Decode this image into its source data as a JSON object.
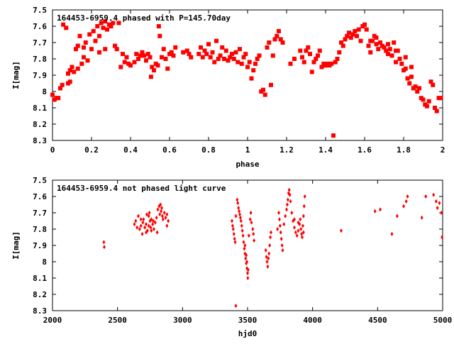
{
  "colors": {
    "points": "#ff0000",
    "axes": "#000000",
    "background": "#ffffff"
  },
  "chart_data": [
    {
      "type": "scatter",
      "title": "164453-6959.4 phased with P=145.70day",
      "xlabel": "phase",
      "ylabel": "I[mag]",
      "xlim": [
        0,
        2
      ],
      "ylim": [
        8.3,
        7.5
      ],
      "y_inverted": true,
      "grid": false,
      "x_ticks": [
        "0",
        "0.2",
        "0.4",
        "0.6",
        "0.8",
        "1",
        "1.2",
        "1.4",
        "1.6",
        "1.8",
        "2"
      ],
      "y_ticks": [
        "7.5",
        "7.6",
        "7.7",
        "7.8",
        "7.9",
        "8",
        "8.1",
        "8.2",
        "8.3"
      ],
      "marker": "square",
      "points": [
        [
          0.0,
          8.02
        ],
        [
          0.01,
          8.05
        ],
        [
          0.02,
          8.04
        ],
        [
          0.03,
          8.04
        ],
        [
          0.04,
          7.98
        ],
        [
          0.05,
          7.96
        ],
        [
          0.055,
          7.59
        ],
        [
          0.07,
          7.61
        ],
        [
          0.08,
          7.89
        ],
        [
          0.09,
          7.87
        ],
        [
          0.1,
          7.85
        ],
        [
          0.11,
          7.88
        ],
        [
          0.12,
          7.74
        ],
        [
          0.13,
          7.72
        ],
        [
          0.14,
          7.66
        ],
        [
          0.15,
          7.83
        ],
        [
          0.16,
          7.79
        ],
        [
          0.17,
          7.7
        ],
        [
          0.18,
          7.81
        ],
        [
          0.19,
          7.65
        ],
        [
          0.2,
          7.74
        ],
        [
          0.21,
          7.63
        ],
        [
          0.22,
          7.69
        ],
        [
          0.23,
          7.6
        ],
        [
          0.24,
          7.76
        ],
        [
          0.25,
          7.58
        ],
        [
          0.26,
          7.61
        ],
        [
          0.27,
          7.57
        ],
        [
          0.28,
          7.62
        ],
        [
          0.29,
          7.59
        ],
        [
          0.3,
          7.6
        ],
        [
          0.31,
          7.58
        ],
        [
          0.32,
          7.72
        ],
        [
          0.33,
          7.74
        ],
        [
          0.34,
          7.58
        ],
        [
          0.35,
          7.85
        ],
        [
          0.36,
          7.77
        ],
        [
          0.37,
          7.82
        ],
        [
          0.38,
          7.79
        ],
        [
          0.39,
          7.83
        ],
        [
          0.4,
          7.84
        ],
        [
          0.42,
          7.82
        ],
        [
          0.43,
          7.77
        ],
        [
          0.44,
          7.8
        ],
        [
          0.45,
          7.78
        ],
        [
          0.46,
          7.76
        ],
        [
          0.47,
          7.78
        ],
        [
          0.48,
          7.81
        ],
        [
          0.49,
          7.77
        ],
        [
          0.5,
          7.79
        ],
        [
          0.505,
          7.91
        ],
        [
          0.51,
          7.85
        ],
        [
          0.52,
          7.87
        ],
        [
          0.53,
          7.83
        ],
        [
          0.54,
          7.84
        ],
        [
          0.545,
          7.6
        ],
        [
          0.55,
          7.66
        ],
        [
          0.56,
          7.79
        ],
        [
          0.57,
          7.74
        ],
        [
          0.58,
          7.8
        ],
        [
          0.59,
          7.86
        ],
        [
          0.6,
          7.77
        ],
        [
          0.61,
          7.76
        ],
        [
          0.62,
          7.78
        ],
        [
          0.63,
          7.73
        ],
        [
          0.67,
          7.76
        ],
        [
          0.69,
          7.75
        ],
        [
          0.7,
          7.77
        ],
        [
          0.71,
          7.79
        ],
        [
          0.76,
          7.73
        ],
        [
          0.77,
          7.79
        ],
        [
          0.78,
          7.75
        ],
        [
          0.79,
          7.77
        ],
        [
          0.8,
          7.71
        ],
        [
          0.81,
          7.79
        ],
        [
          0.82,
          7.76
        ],
        [
          0.83,
          7.82
        ],
        [
          0.84,
          7.69
        ],
        [
          0.85,
          7.8
        ],
        [
          0.86,
          7.78
        ],
        [
          0.87,
          7.73
        ],
        [
          0.88,
          7.8
        ],
        [
          0.89,
          7.75
        ],
        [
          0.9,
          7.81
        ],
        [
          0.91,
          7.79
        ],
        [
          0.92,
          7.77
        ],
        [
          0.93,
          7.8
        ],
        [
          0.94,
          7.76
        ],
        [
          0.95,
          7.82
        ],
        [
          0.96,
          7.74
        ],
        [
          0.97,
          7.83
        ],
        [
          0.98,
          7.79
        ],
        [
          0.99,
          7.77
        ],
        [
          1.0,
          7.85
        ],
        [
          1.01,
          7.82
        ],
        [
          1.02,
          7.92
        ],
        [
          1.03,
          7.87
        ],
        [
          1.04,
          7.83
        ],
        [
          1.05,
          7.8
        ],
        [
          1.06,
          7.78
        ],
        [
          1.07,
          8.0
        ],
        [
          1.08,
          7.99
        ],
        [
          1.09,
          8.02
        ],
        [
          1.1,
          7.73
        ],
        [
          1.11,
          7.7
        ],
        [
          1.12,
          7.96
        ],
        [
          1.13,
          7.78
        ],
        [
          1.14,
          7.68
        ],
        [
          1.15,
          7.66
        ],
        [
          1.16,
          7.63
        ],
        [
          1.22,
          7.83
        ],
        [
          1.24,
          7.8
        ],
        [
          1.3,
          7.75
        ],
        [
          1.32,
          7.77
        ],
        [
          1.33,
          7.88
        ],
        [
          1.34,
          7.82
        ],
        [
          1.35,
          7.8
        ],
        [
          1.36,
          7.78
        ],
        [
          1.37,
          7.75
        ],
        [
          1.38,
          7.85
        ],
        [
          1.39,
          7.83
        ],
        [
          1.4,
          7.84
        ],
        [
          1.41,
          7.83
        ],
        [
          1.42,
          7.84
        ],
        [
          1.43,
          7.83
        ],
        [
          1.44,
          8.27
        ],
        [
          1.45,
          7.82
        ],
        [
          1.46,
          7.8
        ],
        [
          1.47,
          7.76
        ],
        [
          1.48,
          7.7
        ],
        [
          1.49,
          7.72
        ],
        [
          1.5,
          7.68
        ],
        [
          1.51,
          7.66
        ],
        [
          1.52,
          7.64
        ],
        [
          1.53,
          7.67
        ],
        [
          1.54,
          7.65
        ],
        [
          1.55,
          7.63
        ],
        [
          1.56,
          7.66
        ],
        [
          1.57,
          7.62
        ],
        [
          1.58,
          7.69
        ],
        [
          1.59,
          7.6
        ],
        [
          1.6,
          7.59
        ],
        [
          1.61,
          7.62
        ],
        [
          1.62,
          7.72
        ],
        [
          1.63,
          7.76
        ],
        [
          1.64,
          7.69
        ],
        [
          1.65,
          7.66
        ],
        [
          1.66,
          7.71
        ],
        [
          1.67,
          7.74
        ],
        [
          1.68,
          7.7
        ],
        [
          1.69,
          7.72
        ],
        [
          1.7,
          7.73
        ],
        [
          1.71,
          7.75
        ],
        [
          1.72,
          7.71
        ],
        [
          1.73,
          7.74
        ],
        [
          1.74,
          7.78
        ],
        [
          1.75,
          7.7
        ],
        [
          1.76,
          7.82
        ],
        [
          1.77,
          7.75
        ],
        [
          1.78,
          7.8
        ],
        [
          1.79,
          7.83
        ],
        [
          1.8,
          7.87
        ],
        [
          1.81,
          7.86
        ],
        [
          1.82,
          7.92
        ],
        [
          1.83,
          7.95
        ],
        [
          1.84,
          7.91
        ],
        [
          1.85,
          7.98
        ],
        [
          1.86,
          7.97
        ],
        [
          1.87,
          8.0
        ],
        [
          1.88,
          7.98
        ],
        [
          1.89,
          8.04
        ],
        [
          1.9,
          8.05
        ],
        [
          1.91,
          8.08
        ],
        [
          1.92,
          8.09
        ],
        [
          1.93,
          8.06
        ],
        [
          1.94,
          7.94
        ],
        [
          1.95,
          7.96
        ],
        [
          1.96,
          8.1
        ],
        [
          1.97,
          8.12
        ],
        [
          1.98,
          8.04
        ],
        [
          1.99,
          8.04
        ],
        [
          0.08,
          7.95
        ],
        [
          0.09,
          7.94
        ],
        [
          0.13,
          7.86
        ],
        [
          0.16,
          7.73
        ],
        [
          0.24,
          7.66
        ],
        [
          0.27,
          7.74
        ],
        [
          0.75,
          7.77
        ],
        [
          1.17,
          7.68
        ],
        [
          1.18,
          7.7
        ],
        [
          1.27,
          7.75
        ],
        [
          1.28,
          7.79
        ],
        [
          1.29,
          7.82
        ],
        [
          1.31,
          7.73
        ],
        [
          1.63,
          7.69
        ],
        [
          1.66,
          7.67
        ],
        [
          1.72,
          7.77
        ],
        [
          1.76,
          7.75
        ],
        [
          1.81,
          7.79
        ],
        [
          1.84,
          7.85
        ]
      ]
    },
    {
      "type": "scatter",
      "title": "164453-6959.4 not phased light curve",
      "xlabel": "hjd0",
      "ylabel": "I[mag]",
      "xlim": [
        2000,
        5000
      ],
      "ylim": [
        8.3,
        7.5
      ],
      "y_inverted": true,
      "grid": false,
      "x_ticks": [
        "2000",
        "2500",
        "3000",
        "3500",
        "4000",
        "4500",
        "5000"
      ],
      "y_ticks": [
        "7.5",
        "7.6",
        "7.7",
        "7.8",
        "7.9",
        "8",
        "8.1",
        "8.2",
        "8.3"
      ],
      "marker": "diamond",
      "points": [
        [
          2395,
          7.88
        ],
        [
          2398,
          7.91
        ],
        [
          2630,
          7.77
        ],
        [
          2640,
          7.75
        ],
        [
          2650,
          7.79
        ],
        [
          2660,
          7.72
        ],
        [
          2670,
          7.8
        ],
        [
          2680,
          7.78
        ],
        [
          2690,
          7.83
        ],
        [
          2695,
          7.76
        ],
        [
          2700,
          7.74
        ],
        [
          2710,
          7.79
        ],
        [
          2720,
          7.77
        ],
        [
          2725,
          7.71
        ],
        [
          2730,
          7.81
        ],
        [
          2740,
          7.78
        ],
        [
          2745,
          7.7
        ],
        [
          2750,
          7.75
        ],
        [
          2755,
          7.79
        ],
        [
          2760,
          7.81
        ],
        [
          2770,
          7.77
        ],
        [
          2775,
          7.75
        ],
        [
          2780,
          7.8
        ],
        [
          2790,
          7.76
        ],
        [
          2800,
          7.73
        ],
        [
          2805,
          7.82
        ],
        [
          2810,
          7.68
        ],
        [
          2820,
          7.66
        ],
        [
          2825,
          7.71
        ],
        [
          2830,
          7.65
        ],
        [
          2835,
          7.69
        ],
        [
          2840,
          7.67
        ],
        [
          2845,
          7.72
        ],
        [
          2850,
          7.74
        ],
        [
          2860,
          7.7
        ],
        [
          2870,
          7.73
        ],
        [
          2880,
          7.71
        ],
        [
          2890,
          7.75
        ],
        [
          2740,
          7.72
        ],
        [
          2720,
          7.82
        ],
        [
          2680,
          7.74
        ],
        [
          2760,
          7.74
        ],
        [
          2880,
          7.78
        ],
        [
          3380,
          7.75
        ],
        [
          3385,
          7.78
        ],
        [
          3390,
          7.8
        ],
        [
          3395,
          7.83
        ],
        [
          3400,
          7.86
        ],
        [
          3405,
          7.88
        ],
        [
          3410,
          7.72
        ],
        [
          3410,
          8.27
        ],
        [
          3420,
          7.62
        ],
        [
          3425,
          7.64
        ],
        [
          3430,
          7.67
        ],
        [
          3435,
          7.69
        ],
        [
          3440,
          7.71
        ],
        [
          3445,
          7.73
        ],
        [
          3450,
          7.75
        ],
        [
          3455,
          7.78
        ],
        [
          3460,
          7.81
        ],
        [
          3465,
          7.84
        ],
        [
          3470,
          7.88
        ],
        [
          3475,
          7.92
        ],
        [
          3480,
          7.95
        ],
        [
          3485,
          7.98
        ],
        [
          3490,
          8.01
        ],
        [
          3495,
          8.04
        ],
        [
          3500,
          8.07
        ],
        [
          3502,
          8.1
        ],
        [
          3505,
          8.05
        ],
        [
          3495,
          8.0
        ],
        [
          3490,
          7.96
        ],
        [
          3480,
          7.9
        ],
        [
          3510,
          7.84
        ],
        [
          3520,
          7.74
        ],
        [
          3525,
          7.7
        ],
        [
          3530,
          7.76
        ],
        [
          3540,
          7.8
        ],
        [
          3545,
          7.83
        ],
        [
          3550,
          7.87
        ],
        [
          3640,
          7.93
        ],
        [
          3645,
          7.97
        ],
        [
          3650,
          8.0
        ],
        [
          3655,
          8.03
        ],
        [
          3660,
          7.98
        ],
        [
          3665,
          7.95
        ],
        [
          3670,
          7.9
        ],
        [
          3675,
          7.85
        ],
        [
          3680,
          7.82
        ],
        [
          3730,
          7.8
        ],
        [
          3740,
          7.7
        ],
        [
          3745,
          7.74
        ],
        [
          3750,
          7.78
        ],
        [
          3755,
          7.82
        ],
        [
          3760,
          7.86
        ],
        [
          3765,
          7.9
        ],
        [
          3770,
          7.93
        ],
        [
          3780,
          7.77
        ],
        [
          3790,
          7.72
        ],
        [
          3800,
          7.68
        ],
        [
          3805,
          7.65
        ],
        [
          3810,
          7.62
        ],
        [
          3815,
          7.58
        ],
        [
          3820,
          7.56
        ],
        [
          3825,
          7.59
        ],
        [
          3830,
          7.63
        ],
        [
          3840,
          7.7
        ],
        [
          3850,
          7.75
        ],
        [
          3860,
          7.79
        ],
        [
          3870,
          7.82
        ],
        [
          3880,
          7.84
        ],
        [
          3890,
          7.81
        ],
        [
          3900,
          7.77
        ],
        [
          3905,
          7.74
        ],
        [
          3910,
          7.8
        ],
        [
          3915,
          7.83
        ],
        [
          3920,
          7.85
        ],
        [
          3925,
          7.78
        ],
        [
          3930,
          7.72
        ],
        [
          3935,
          7.66
        ],
        [
          3940,
          7.6
        ],
        [
          3890,
          7.76
        ],
        [
          3860,
          7.74
        ],
        [
          3930,
          7.82
        ],
        [
          4220,
          7.81
        ],
        [
          4480,
          7.69
        ],
        [
          4520,
          7.68
        ],
        [
          4610,
          7.83
        ],
        [
          4650,
          7.72
        ],
        [
          4700,
          7.66
        ],
        [
          4720,
          7.63
        ],
        [
          4730,
          7.6
        ],
        [
          4840,
          7.73
        ],
        [
          4870,
          7.6
        ],
        [
          4930,
          7.59
        ],
        [
          4950,
          7.63
        ],
        [
          4960,
          7.67
        ],
        [
          4975,
          7.64
        ],
        [
          4990,
          7.7
        ],
        [
          4995,
          7.85
        ]
      ]
    }
  ]
}
